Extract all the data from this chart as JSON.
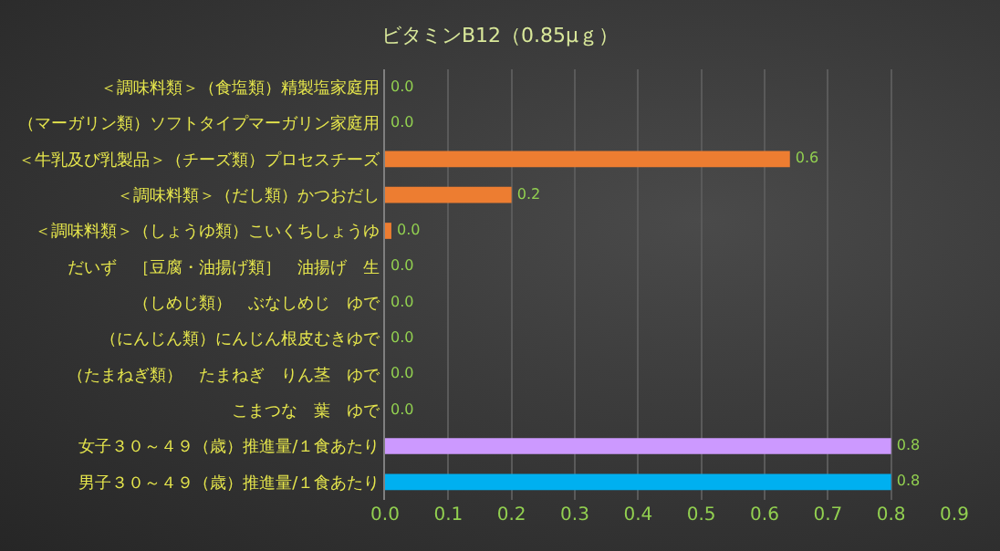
{
  "chart_data": {
    "type": "bar",
    "orientation": "horizontal",
    "title": "ビタミンB12（0.85μｇ）",
    "categories": [
      "＜調味料類＞（食塩類）精製塩家庭用",
      "（マーガリン類）ソフトタイプマーガリン家庭用",
      "＜牛乳及び乳製品＞（チーズ類）プロセスチーズ",
      "＜調味料類＞（だし類）かつおだし",
      "＜調味料類＞（しょうゆ類）こいくちしょうゆ",
      "だいず　［豆腐・油揚げ類］　油揚げ　生",
      "（しめじ類）　ぶなしめじ　ゆで",
      "（にんじん類）にんじん根皮むきゆで",
      "（たまねぎ類）　たまねぎ　りん茎　ゆで",
      "こまつな　葉　ゆで",
      "女子３０～４９（歳）推進量/１食あたり",
      "男子３０～４９（歳）推進量/１食あたり"
    ],
    "values": [
      0,
      0,
      0.64,
      0.2,
      0.01,
      0,
      0,
      0,
      0,
      0,
      0.8,
      0.8
    ],
    "value_labels": [
      "0.0",
      "0.0",
      "0.6",
      "0.2",
      "0.0",
      "0.0",
      "0.0",
      "0.0",
      "0.0",
      "0.0",
      "0.8",
      "0.8"
    ],
    "colors": [
      "#ed7d31",
      "#ed7d31",
      "#ed7d31",
      "#ed7d31",
      "#ed7d31",
      "#ed7d31",
      "#ed7d31",
      "#ed7d31",
      "#ed7d31",
      "#ed7d31",
      "#cc99ff",
      "#00b0f0"
    ],
    "xlim": [
      0,
      0.9
    ],
    "xticks": [
      {
        "value": 0,
        "label": "0.0"
      },
      {
        "value": 0.1,
        "label": "0.1"
      },
      {
        "value": 0.2,
        "label": "0.2"
      },
      {
        "value": 0.3,
        "label": "0.3"
      },
      {
        "value": 0.4,
        "label": "0.4"
      },
      {
        "value": 0.5,
        "label": "0.5"
      },
      {
        "value": 0.6,
        "label": "0.6"
      },
      {
        "value": 0.7,
        "label": "0.7"
      },
      {
        "value": 0.8,
        "label": "0.8"
      },
      {
        "value": 0.9,
        "label": "0.9"
      }
    ],
    "grid": "x",
    "legend": false
  }
}
